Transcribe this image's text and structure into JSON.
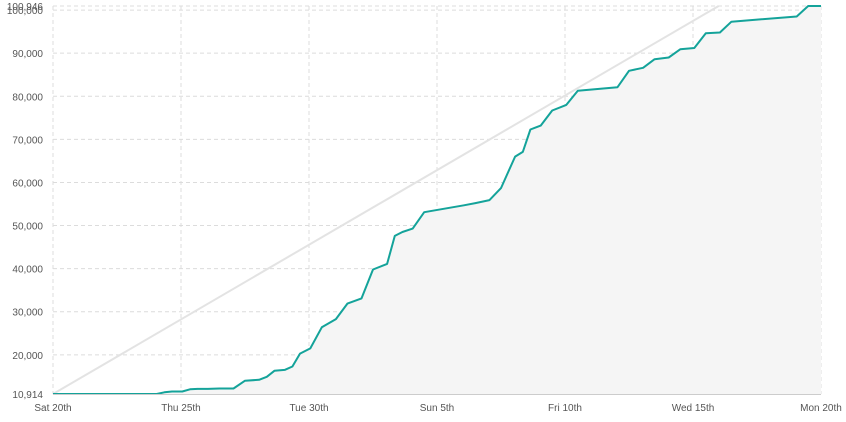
{
  "chart_data": {
    "type": "area",
    "title": "",
    "xlabel": "",
    "ylabel": "",
    "x_range": [
      "2024-04-20",
      "2024-05-20"
    ],
    "ylim": [
      10914,
      100946
    ],
    "y_ticks": [
      {
        "value": 10914,
        "label": "10,914"
      },
      {
        "value": 20000,
        "label": "20,000"
      },
      {
        "value": 30000,
        "label": "30,000"
      },
      {
        "value": 40000,
        "label": "40,000"
      },
      {
        "value": 50000,
        "label": "50,000"
      },
      {
        "value": 60000,
        "label": "60,000"
      },
      {
        "value": 70000,
        "label": "70,000"
      },
      {
        "value": 80000,
        "label": "80,000"
      },
      {
        "value": 90000,
        "label": "90,000"
      },
      {
        "value": 100000,
        "label": "100,000"
      },
      {
        "value": 100946,
        "label": "100,946"
      }
    ],
    "x_ticks": [
      {
        "value": "2024-04-20",
        "label": "Sat 20th"
      },
      {
        "value": "2024-04-25",
        "label": "Thu 25th"
      },
      {
        "value": "2024-04-30",
        "label": "Tue 30th"
      },
      {
        "value": "2024-05-05",
        "label": "Sun 5th"
      },
      {
        "value": "2024-05-10",
        "label": "Fri 10th"
      },
      {
        "value": "2024-05-15",
        "label": "Wed 15th"
      },
      {
        "value": "2024-05-20",
        "label": "Mon 20th"
      }
    ],
    "grid": true,
    "colors": {
      "line": "#14a39a",
      "area": "#f5f5f5",
      "ideal": "#e3e3e3",
      "grid": "#dcdcdc"
    },
    "series": [
      {
        "values": [
          [
            "2024-04-20",
            10914
          ],
          [
            "2024-04-24",
            10914
          ],
          [
            "2024-04-24",
            11300
          ],
          [
            "2024-04-24",
            11500
          ],
          [
            "2024-04-25",
            11500
          ],
          [
            "2024-04-25",
            12000
          ],
          [
            "2024-04-25",
            12100
          ],
          [
            "2024-04-26",
            12100
          ],
          [
            "2024-04-26",
            12200
          ],
          [
            "2024-04-27",
            12200
          ],
          [
            "2024-04-27",
            14000
          ],
          [
            "2024-04-28",
            14200
          ],
          [
            "2024-04-28",
            14900
          ],
          [
            "2024-04-28",
            16300
          ],
          [
            "2024-04-29",
            16500
          ],
          [
            "2024-04-29",
            17300
          ],
          [
            "2024-04-29",
            20300
          ],
          [
            "2024-04-30",
            21500
          ],
          [
            "2024-04-30",
            26400
          ],
          [
            "2024-05-01",
            28300
          ],
          [
            "2024-05-01",
            31900
          ],
          [
            "2024-05-02",
            33100
          ],
          [
            "2024-05-02",
            39800
          ],
          [
            "2024-05-03",
            41100
          ],
          [
            "2024-05-03",
            47600
          ],
          [
            "2024-05-03",
            48500
          ],
          [
            "2024-05-04",
            49300
          ],
          [
            "2024-05-04",
            53100
          ],
          [
            "2024-05-06",
            54700
          ],
          [
            "2024-05-06",
            55200
          ],
          [
            "2024-05-07",
            55900
          ],
          [
            "2024-05-07",
            58700
          ],
          [
            "2024-05-08",
            66000
          ],
          [
            "2024-05-08",
            67100
          ],
          [
            "2024-05-08",
            72300
          ],
          [
            "2024-05-09",
            73200
          ],
          [
            "2024-05-09",
            76700
          ],
          [
            "2024-05-10",
            78000
          ],
          [
            "2024-05-10",
            81300
          ],
          [
            "2024-05-12",
            82100
          ],
          [
            "2024-05-12",
            85900
          ],
          [
            "2024-05-13",
            86600
          ],
          [
            "2024-05-13",
            88600
          ],
          [
            "2024-05-14",
            89000
          ],
          [
            "2024-05-14",
            90900
          ],
          [
            "2024-05-15",
            91200
          ],
          [
            "2024-05-15",
            94600
          ],
          [
            "2024-05-16",
            94800
          ],
          [
            "2024-05-16",
            97300
          ],
          [
            "2024-05-19",
            98500
          ],
          [
            "2024-05-19",
            100946
          ],
          [
            "2024-05-20",
            100946
          ]
        ]
      },
      {
        "values": [
          [
            "2024-04-20",
            10914
          ],
          [
            "2024-05-16",
            100946
          ]
        ]
      }
    ]
  }
}
